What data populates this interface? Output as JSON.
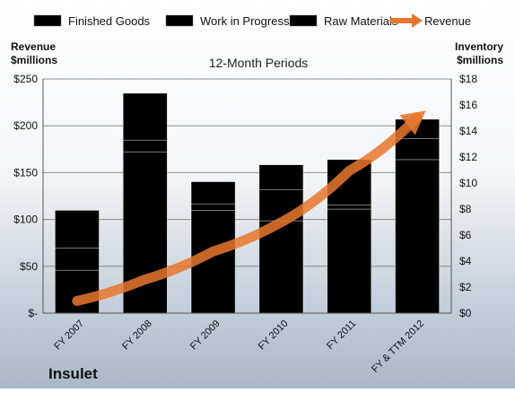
{
  "chart_data": {
    "type": "bar",
    "stacked": true,
    "title": "12-Month Periods",
    "company": "Insulet",
    "left_axis_label": [
      "Revenue",
      "$millions"
    ],
    "right_axis_label": [
      "Inventory",
      "$millions"
    ],
    "categories": [
      "FY 2007",
      "FY 2008",
      "FY 2009",
      "FY 2010",
      "FY 2011",
      "FY & TTM 2012"
    ],
    "left_ticks": [
      "$-",
      "$50",
      "$100",
      "$150",
      "$200",
      "$250"
    ],
    "left_tick_values": [
      0,
      50,
      100,
      150,
      200,
      250
    ],
    "right_ticks": [
      "$0",
      "$2",
      "$4",
      "$6",
      "$8",
      "$10",
      "$12",
      "$14",
      "$16",
      "$18"
    ],
    "right_tick_values": [
      0,
      2,
      4,
      6,
      8,
      10,
      12,
      14,
      16,
      18
    ],
    "ylim_left": [
      0,
      250
    ],
    "ylim_right": [
      0,
      18
    ],
    "grid": true,
    "legend_position": "top",
    "series": [
      {
        "name": "Finished Goods",
        "axis": "right",
        "kind": "bar",
        "color": "#c0272d",
        "values": [
          3.3,
          12.4,
          7.9,
          7.1,
          8.0,
          11.8
        ]
      },
      {
        "name": "Work in Progress",
        "axis": "right",
        "kind": "bar",
        "color": "#5b7fb3",
        "values": [
          1.7,
          0.9,
          0.5,
          2.4,
          0.3,
          1.6
        ]
      },
      {
        "name": "Raw Materials",
        "axis": "right",
        "kind": "bar",
        "color": "#82a53f",
        "values": [
          2.9,
          3.6,
          1.7,
          1.9,
          3.5,
          1.5
        ]
      },
      {
        "name": "Revenue",
        "axis": "left",
        "kind": "trend-arrow",
        "color": "#e8772e",
        "values": [
          13,
          36,
          66,
          97,
          152,
          209
        ]
      }
    ]
  }
}
